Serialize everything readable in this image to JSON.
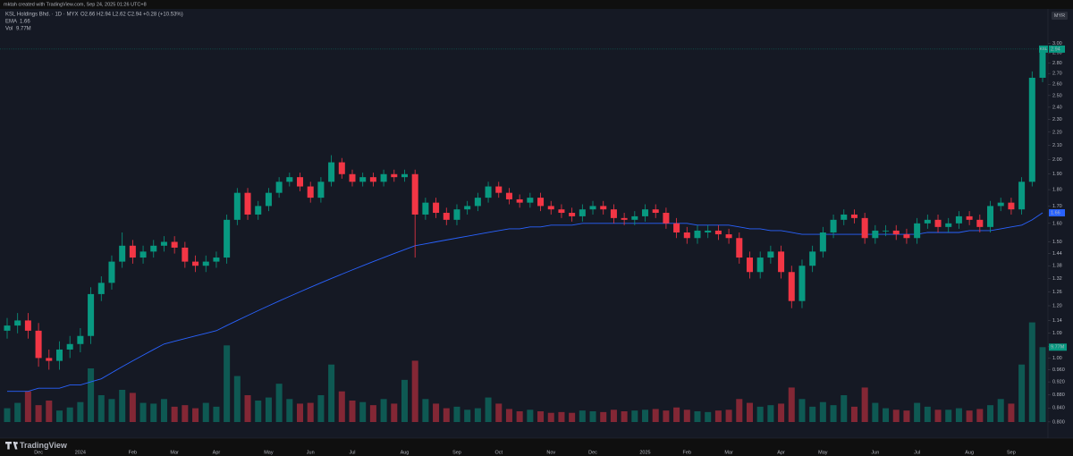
{
  "header": {
    "author": "mktah created with TradingView.com, Sep 24, 2025 01:26 UTC+8",
    "symbol": "KSL Holdings Bhd. · 1D · MYX",
    "ohlc": "O2.66 H2.94 L2.62 C2.94 +0.28 (+10.53%)",
    "currency": "MYR",
    "ticker": "KSL"
  },
  "footer": {
    "brand": "TradingView"
  },
  "chart_data": {
    "type": "candlestick",
    "log": true,
    "grid": false,
    "up_color": "#089981",
    "down_color": "#f23645",
    "ema_color": "#2962ff",
    "ema_name": "EMA",
    "volume_name": "Vol",
    "volume_label": "9.77M",
    "ylim": [
      0.78,
      3.08
    ],
    "yticks": [
      {
        "value": 3,
        "label": "3.00"
      },
      {
        "value": 2.9,
        "label": "2.90"
      },
      {
        "value": 2.8,
        "label": "2.80"
      },
      {
        "value": 2.7,
        "label": "2.70"
      },
      {
        "value": 2.6,
        "label": "2.60"
      },
      {
        "value": 2.5,
        "label": "2.50"
      },
      {
        "value": 2.4,
        "label": "2.40"
      },
      {
        "value": 2.3,
        "label": "2.30"
      },
      {
        "value": 2.2,
        "label": "2.20"
      },
      {
        "value": 2.1,
        "label": "2.10"
      },
      {
        "value": 2,
        "label": "2.00"
      },
      {
        "value": 1.9,
        "label": "1.90"
      },
      {
        "value": 1.8,
        "label": "1.80"
      },
      {
        "value": 1.7,
        "label": "1.70"
      },
      {
        "value": 1.6,
        "label": "1.60"
      },
      {
        "value": 1.5,
        "label": "1.50"
      },
      1.44,
      1.38,
      1.32,
      1.26,
      {
        "value": 1.2,
        "label": "1.20"
      },
      1.14,
      1.09,
      1.04,
      {
        "value": 1,
        "label": "1.00"
      },
      {
        "value": 0.96,
        "label": "0.960"
      },
      {
        "value": 0.92,
        "label": "0.920"
      },
      {
        "value": 0.88,
        "label": "0.880"
      },
      {
        "value": 0.84,
        "label": "0.840"
      },
      {
        "value": 0.8,
        "label": "0.800"
      }
    ],
    "volume_lim": [
      0,
      14
    ],
    "categories": [
      null,
      null,
      null,
      "Dec",
      null,
      null,
      null,
      "2024",
      null,
      null,
      null,
      null,
      "Feb",
      null,
      null,
      null,
      "Mar",
      null,
      null,
      null,
      "Apr",
      null,
      null,
      null,
      null,
      "May",
      null,
      null,
      null,
      "Jun",
      null,
      null,
      null,
      "Jul",
      null,
      null,
      null,
      null,
      "Aug",
      null,
      null,
      null,
      null,
      "Sep",
      null,
      null,
      null,
      "Oct",
      null,
      null,
      null,
      null,
      "Nov",
      null,
      null,
      null,
      "Dec",
      null,
      null,
      null,
      null,
      "2025",
      null,
      null,
      null,
      "Feb",
      null,
      null,
      null,
      "Mar",
      null,
      null,
      null,
      null,
      "Apr",
      null,
      null,
      null,
      "May",
      null,
      null,
      null,
      null,
      "Jun",
      null,
      null,
      null,
      "Jul",
      null,
      null,
      null,
      null,
      "Aug",
      null,
      null,
      null,
      "Sep",
      null,
      null,
      null
    ],
    "open": [
      1.1,
      1.12,
      1.14,
      1.1,
      1.0,
      0.99,
      1.03,
      1.05,
      1.08,
      1.25,
      1.3,
      1.4,
      1.48,
      1.42,
      1.45,
      1.48,
      1.5,
      1.47,
      1.4,
      1.38,
      1.4,
      1.42,
      1.62,
      1.78,
      1.65,
      1.7,
      1.78,
      1.85,
      1.88,
      1.82,
      1.75,
      1.85,
      1.98,
      1.9,
      1.85,
      1.88,
      1.85,
      1.9,
      1.88,
      1.9,
      1.65,
      1.72,
      1.66,
      1.62,
      1.68,
      1.7,
      1.75,
      1.82,
      1.78,
      1.74,
      1.72,
      1.75,
      1.7,
      1.68,
      1.66,
      1.64,
      1.68,
      1.7,
      1.68,
      1.63,
      1.62,
      1.64,
      1.68,
      1.66,
      1.6,
      1.55,
      1.52,
      1.55,
      1.56,
      1.54,
      1.52,
      1.42,
      1.35,
      1.42,
      1.45,
      1.35,
      1.22,
      1.38,
      1.45,
      1.55,
      1.62,
      1.65,
      1.63,
      1.52,
      1.56,
      1.56,
      1.54,
      1.52,
      1.6,
      1.62,
      1.58,
      1.6,
      1.64,
      1.62,
      1.58,
      1.7,
      1.72,
      1.68,
      1.85,
      2.66
    ],
    "high": [
      1.15,
      1.17,
      1.17,
      1.13,
      1.03,
      1.06,
      1.08,
      1.11,
      1.28,
      1.33,
      1.43,
      1.55,
      1.51,
      1.48,
      1.51,
      1.53,
      1.53,
      1.5,
      1.43,
      1.43,
      1.45,
      1.65,
      1.81,
      1.81,
      1.73,
      1.81,
      1.88,
      1.91,
      1.91,
      1.85,
      1.88,
      2.03,
      2.01,
      1.93,
      1.91,
      1.91,
      1.93,
      1.93,
      1.93,
      1.93,
      1.75,
      1.75,
      1.69,
      1.71,
      1.73,
      1.78,
      1.85,
      1.85,
      1.81,
      1.77,
      1.78,
      1.78,
      1.73,
      1.71,
      1.69,
      1.71,
      1.73,
      1.73,
      1.71,
      1.66,
      1.67,
      1.71,
      1.71,
      1.69,
      1.63,
      1.58,
      1.59,
      1.59,
      1.59,
      1.57,
      1.55,
      1.45,
      1.45,
      1.48,
      1.48,
      1.38,
      1.41,
      1.48,
      1.58,
      1.65,
      1.68,
      1.68,
      1.66,
      1.59,
      1.59,
      1.59,
      1.57,
      1.63,
      1.65,
      1.65,
      1.63,
      1.67,
      1.67,
      1.65,
      1.73,
      1.75,
      1.75,
      1.88,
      2.72,
      2.94
    ],
    "low": [
      1.07,
      1.09,
      1.07,
      0.97,
      0.96,
      0.96,
      1.0,
      1.02,
      1.05,
      1.22,
      1.27,
      1.37,
      1.39,
      1.39,
      1.42,
      1.45,
      1.44,
      1.37,
      1.35,
      1.35,
      1.37,
      1.39,
      1.59,
      1.62,
      1.62,
      1.67,
      1.75,
      1.82,
      1.79,
      1.72,
      1.72,
      1.82,
      1.87,
      1.82,
      1.82,
      1.82,
      1.82,
      1.85,
      1.85,
      1.42,
      1.62,
      1.63,
      1.59,
      1.59,
      1.65,
      1.67,
      1.72,
      1.75,
      1.71,
      1.69,
      1.69,
      1.67,
      1.65,
      1.63,
      1.61,
      1.61,
      1.65,
      1.65,
      1.6,
      1.59,
      1.59,
      1.61,
      1.63,
      1.57,
      1.52,
      1.49,
      1.49,
      1.52,
      1.51,
      1.49,
      1.39,
      1.32,
      1.32,
      1.39,
      1.32,
      1.19,
      1.19,
      1.35,
      1.42,
      1.52,
      1.59,
      1.6,
      1.49,
      1.49,
      1.53,
      1.51,
      1.49,
      1.49,
      1.57,
      1.55,
      1.55,
      1.57,
      1.59,
      1.55,
      1.55,
      1.67,
      1.65,
      1.65,
      1.82,
      2.62
    ],
    "close": [
      1.12,
      1.14,
      1.1,
      1.0,
      0.99,
      1.03,
      1.05,
      1.08,
      1.25,
      1.3,
      1.4,
      1.48,
      1.42,
      1.45,
      1.48,
      1.5,
      1.47,
      1.4,
      1.38,
      1.4,
      1.42,
      1.62,
      1.78,
      1.65,
      1.7,
      1.78,
      1.85,
      1.88,
      1.82,
      1.75,
      1.85,
      1.98,
      1.9,
      1.85,
      1.88,
      1.85,
      1.9,
      1.88,
      1.9,
      1.65,
      1.72,
      1.66,
      1.62,
      1.68,
      1.7,
      1.75,
      1.82,
      1.78,
      1.74,
      1.72,
      1.75,
      1.7,
      1.68,
      1.66,
      1.64,
      1.68,
      1.7,
      1.68,
      1.63,
      1.62,
      1.64,
      1.68,
      1.66,
      1.6,
      1.55,
      1.52,
      1.56,
      1.56,
      1.54,
      1.52,
      1.42,
      1.35,
      1.42,
      1.45,
      1.35,
      1.22,
      1.38,
      1.45,
      1.55,
      1.62,
      1.65,
      1.63,
      1.52,
      1.56,
      1.56,
      1.54,
      1.52,
      1.6,
      1.62,
      1.58,
      1.6,
      1.64,
      1.62,
      1.58,
      1.7,
      1.72,
      1.68,
      1.85,
      2.66,
      2.94
    ],
    "ema": [
      0.89,
      0.89,
      0.89,
      0.9,
      0.9,
      0.9,
      0.91,
      0.91,
      0.92,
      0.93,
      0.95,
      0.97,
      0.99,
      1.01,
      1.03,
      1.05,
      1.06,
      1.07,
      1.08,
      1.09,
      1.1,
      1.12,
      1.14,
      1.16,
      1.18,
      1.2,
      1.22,
      1.24,
      1.26,
      1.28,
      1.3,
      1.32,
      1.34,
      1.36,
      1.38,
      1.4,
      1.42,
      1.44,
      1.46,
      1.48,
      1.49,
      1.5,
      1.51,
      1.52,
      1.53,
      1.54,
      1.55,
      1.56,
      1.57,
      1.57,
      1.58,
      1.58,
      1.59,
      1.59,
      1.59,
      1.6,
      1.6,
      1.6,
      1.6,
      1.6,
      1.6,
      1.6,
      1.6,
      1.6,
      1.6,
      1.6,
      1.59,
      1.59,
      1.59,
      1.59,
      1.58,
      1.57,
      1.57,
      1.56,
      1.56,
      1.55,
      1.54,
      1.54,
      1.54,
      1.54,
      1.54,
      1.54,
      1.54,
      1.54,
      1.54,
      1.54,
      1.54,
      1.54,
      1.55,
      1.55,
      1.55,
      1.55,
      1.56,
      1.56,
      1.56,
      1.57,
      1.58,
      1.59,
      1.62,
      1.66
    ],
    "volume": [
      1.8,
      2.5,
      4.0,
      2.2,
      2.8,
      1.5,
      1.9,
      2.6,
      7.0,
      3.5,
      3.0,
      4.2,
      3.8,
      2.5,
      2.4,
      3.0,
      2.0,
      2.2,
      1.8,
      2.5,
      2.0,
      10.0,
      6.0,
      3.5,
      2.8,
      3.2,
      5.0,
      3.0,
      2.4,
      2.5,
      3.5,
      7.5,
      4.0,
      2.8,
      2.6,
      2.2,
      3.0,
      2.4,
      5.5,
      8.0,
      3.0,
      2.4,
      1.8,
      2.0,
      1.6,
      1.8,
      3.2,
      2.4,
      1.7,
      1.4,
      1.6,
      1.4,
      1.2,
      1.3,
      1.2,
      1.5,
      1.4,
      1.3,
      1.6,
      1.4,
      1.5,
      1.6,
      1.7,
      1.5,
      1.9,
      1.6,
      1.4,
      1.3,
      1.5,
      1.6,
      3.0,
      2.5,
      2.0,
      2.2,
      2.4,
      4.5,
      3.0,
      2.0,
      2.6,
      2.2,
      3.5,
      2.0,
      4.5,
      2.5,
      1.8,
      1.6,
      1.5,
      2.5,
      2.0,
      1.6,
      1.6,
      1.8,
      1.5,
      1.7,
      2.2,
      3.0,
      2.4,
      7.5,
      13.0,
      9.77
    ]
  }
}
